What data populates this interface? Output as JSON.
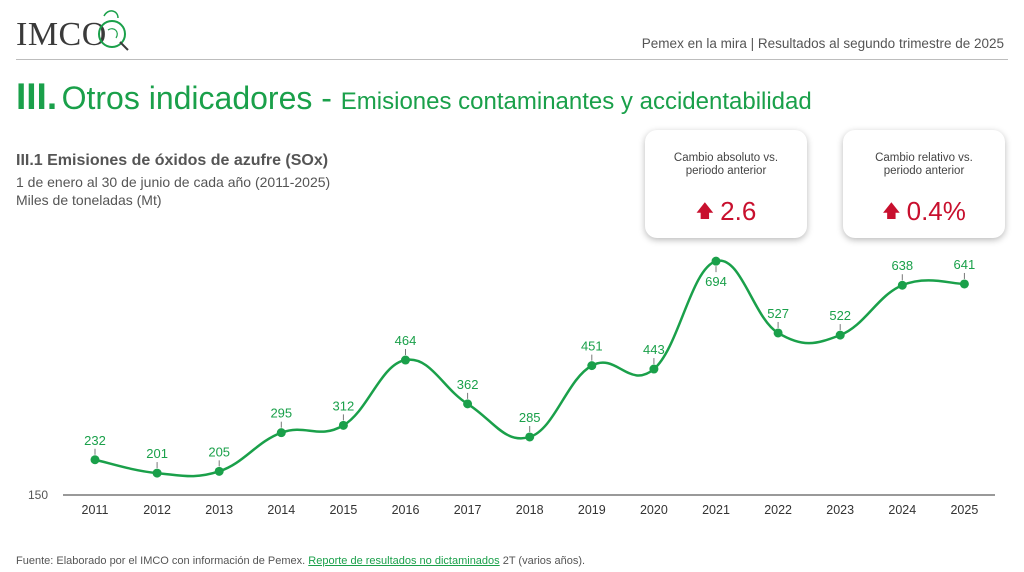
{
  "header": {
    "logo_text": "IMCO",
    "report_title": "Pemex en la mira | Resultados al segundo trimestre de 2025"
  },
  "section": {
    "number": "III.",
    "title": "Otros indicadores",
    "separator": " - ",
    "subtitle": "Emisiones contaminantes y accidentabilidad"
  },
  "chart_header": {
    "title": "III.1 Emisiones de óxidos de azufre (SOx)",
    "period": "1 de enero al 30 de junio de cada año (2011-2025)",
    "units": "Miles de toneladas (Mt)"
  },
  "kpis": [
    {
      "label_line1": "Cambio absoluto vs.",
      "label_line2": "periodo anterior",
      "value": "2.6",
      "direction": "up"
    },
    {
      "label_line1": "Cambio relativo vs.",
      "label_line2": "periodo anterior",
      "value": "0.4%",
      "direction": "up"
    }
  ],
  "colors": {
    "line": "#1aa04a",
    "title_green": "#1aa04a",
    "kpi_red": "#c8102e",
    "axis": "#555555"
  },
  "chart_data": {
    "type": "line",
    "x": [
      "2011",
      "2012",
      "2013",
      "2014",
      "2015",
      "2016",
      "2017",
      "2018",
      "2019",
      "2020",
      "2021",
      "2022",
      "2023",
      "2024",
      "2025"
    ],
    "values": [
      232,
      201,
      205,
      295,
      312,
      464,
      362,
      285,
      451,
      443,
      694,
      527,
      522,
      638,
      641
    ],
    "y_axis_label": "150",
    "ylim": [
      150,
      720
    ],
    "grid": false,
    "legend": "none"
  },
  "footer": {
    "prefix": "Fuente: Elaborado por el IMCO con información de Pemex. ",
    "link_text": "Reporte de resultados no dictaminados",
    "suffix": " 2T (varios años)."
  }
}
